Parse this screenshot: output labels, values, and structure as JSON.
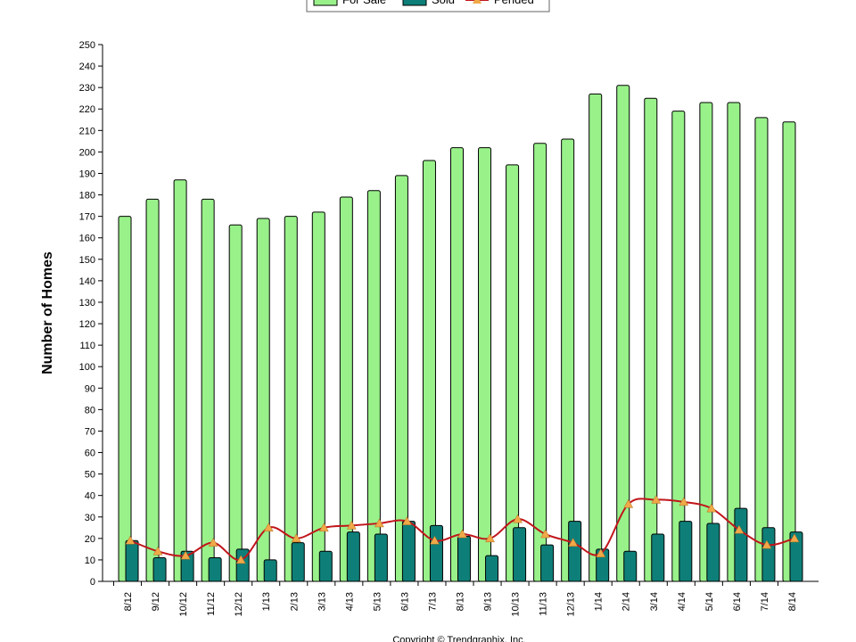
{
  "chart_data": {
    "type": "bar-line",
    "y_label": "Number of Homes",
    "footer": "Copyright © Trendgraphix, Inc.",
    "categories": [
      "8/12",
      "9/12",
      "10/12",
      "11/12",
      "12/12",
      "1/13",
      "2/13",
      "3/13",
      "4/13",
      "5/13",
      "6/13",
      "7/13",
      "8/13",
      "9/13",
      "10/13",
      "11/13",
      "12/13",
      "1/14",
      "2/14",
      "3/14",
      "4/14",
      "5/14",
      "6/14",
      "7/14",
      "8/14"
    ],
    "series": [
      {
        "name": "For Sale",
        "kind": "bar",
        "color": "#99f18a",
        "values": [
          170,
          178,
          187,
          178,
          166,
          169,
          170,
          172,
          179,
          182,
          189,
          196,
          202,
          202,
          194,
          204,
          206,
          227,
          231,
          225,
          219,
          223,
          223,
          216,
          214
        ]
      },
      {
        "name": "Sold",
        "kind": "bar",
        "color": "#0e7f78",
        "values": [
          19,
          11,
          14,
          11,
          15,
          10,
          18,
          14,
          23,
          22,
          28,
          26,
          21,
          12,
          25,
          17,
          28,
          15,
          14,
          22,
          28,
          27,
          34,
          25,
          23
        ]
      },
      {
        "name": "Pended",
        "kind": "line",
        "color": "#c0151b",
        "marker_color": "#f0a848",
        "values": [
          19,
          14,
          12,
          18,
          10,
          25,
          20,
          25,
          26,
          27,
          28,
          19,
          22,
          20,
          29,
          22,
          18,
          13,
          36,
          38,
          37,
          34,
          24,
          17,
          20
        ]
      }
    ],
    "ylim": [
      0,
      250
    ],
    "yticks": [
      0,
      10,
      20,
      30,
      40,
      50,
      60,
      70,
      80,
      90,
      100,
      110,
      120,
      130,
      140,
      150,
      160,
      170,
      180,
      190,
      200,
      210,
      220,
      230,
      240,
      250
    ]
  }
}
